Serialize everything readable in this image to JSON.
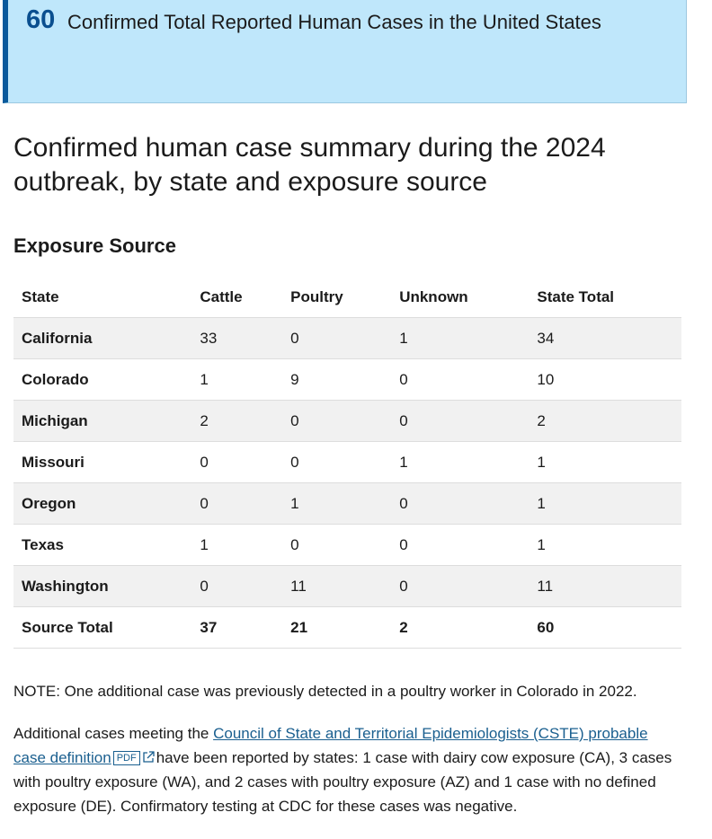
{
  "header": {
    "count": "60",
    "title": "Confirmed Total Reported Human Cases in the United States"
  },
  "heading": "Confirmed human case summary during the 2024 outbreak, by state and exposure source",
  "subheading": "Exposure Source",
  "table": {
    "columns": [
      "State",
      "Cattle",
      "Poultry",
      "Unknown",
      "State Total"
    ],
    "rows": [
      [
        "California",
        33,
        0,
        1,
        34
      ],
      [
        "Colorado",
        1,
        9,
        0,
        10
      ],
      [
        "Michigan",
        2,
        0,
        0,
        2
      ],
      [
        "Missouri",
        0,
        0,
        1,
        1
      ],
      [
        "Oregon",
        0,
        1,
        0,
        1
      ],
      [
        "Texas",
        1,
        0,
        0,
        1
      ],
      [
        "Washington",
        0,
        11,
        0,
        11
      ]
    ],
    "total": [
      "Source Total",
      37,
      21,
      2,
      60
    ]
  },
  "note": "NOTE: One additional case was previously detected in a poultry worker in Colorado in 2022.",
  "paragraph": {
    "before": "Additional cases meeting the",
    "link": "Council of State and Territorial Epidemiologists (CSTE) probable case definition",
    "badge": "PDF",
    "after": "have been reported by states: 1 case with dairy cow exposure (CA), 3 cases with poultry exposure (WA), and 2 cases with poultry exposure (AZ) and 1 case with no defined exposure (DE). Confirmatory testing at CDC for these cases was negative."
  }
}
